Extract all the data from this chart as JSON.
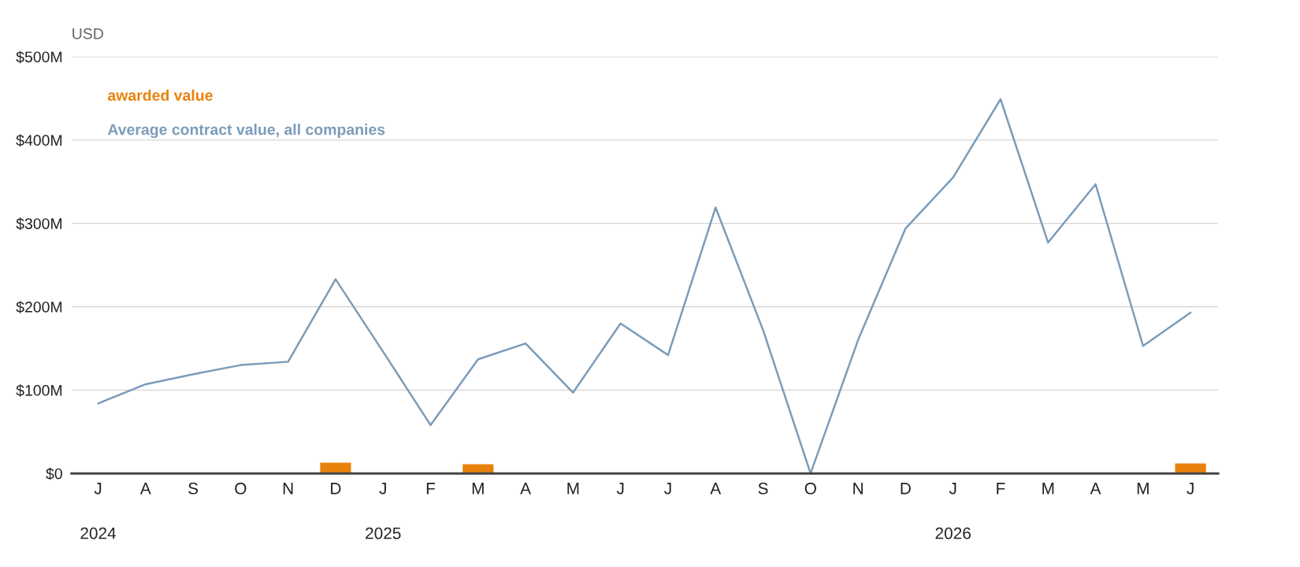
{
  "chart_data": {
    "type": "line",
    "ylabel": "USD",
    "categories": [
      "J\n\n2024",
      "A",
      "S",
      "O",
      "N",
      "D",
      "J\n\n2025",
      "F",
      "M",
      "A",
      "M",
      "J",
      "J",
      "A",
      "S",
      "O",
      "N",
      "D",
      "J\n\n2026",
      "F",
      "M",
      "A",
      "M",
      "J"
    ],
    "series": [
      {
        "name": "awarded value",
        "type": "bar",
        "color": "#e8820c",
        "values": [
          null,
          null,
          null,
          null,
          null,
          13,
          null,
          null,
          11,
          null,
          null,
          null,
          null,
          null,
          null,
          null,
          null,
          null,
          null,
          null,
          null,
          null,
          null,
          12
        ]
      },
      {
        "name": "Average contract value, all companies",
        "color": "#7a9cba",
        "values": [
          84,
          107,
          119,
          130,
          134,
          233,
          146,
          58,
          137,
          156,
          97,
          180,
          142,
          319,
          172,
          0,
          160,
          294,
          355,
          449,
          277,
          347,
          153,
          193
        ]
      }
    ],
    "ylim": [
      0,
      500
    ],
    "yticks": [
      {
        "value": 0,
        "label": "$0"
      },
      {
        "value": 100,
        "label": "$100M"
      },
      {
        "value": 200,
        "label": "$200M"
      },
      {
        "value": 300,
        "label": "$300M"
      },
      {
        "value": 400,
        "label": "$400M"
      },
      {
        "value": 500,
        "label": "$500M"
      }
    ],
    "grid": "y",
    "legend": "top left"
  }
}
